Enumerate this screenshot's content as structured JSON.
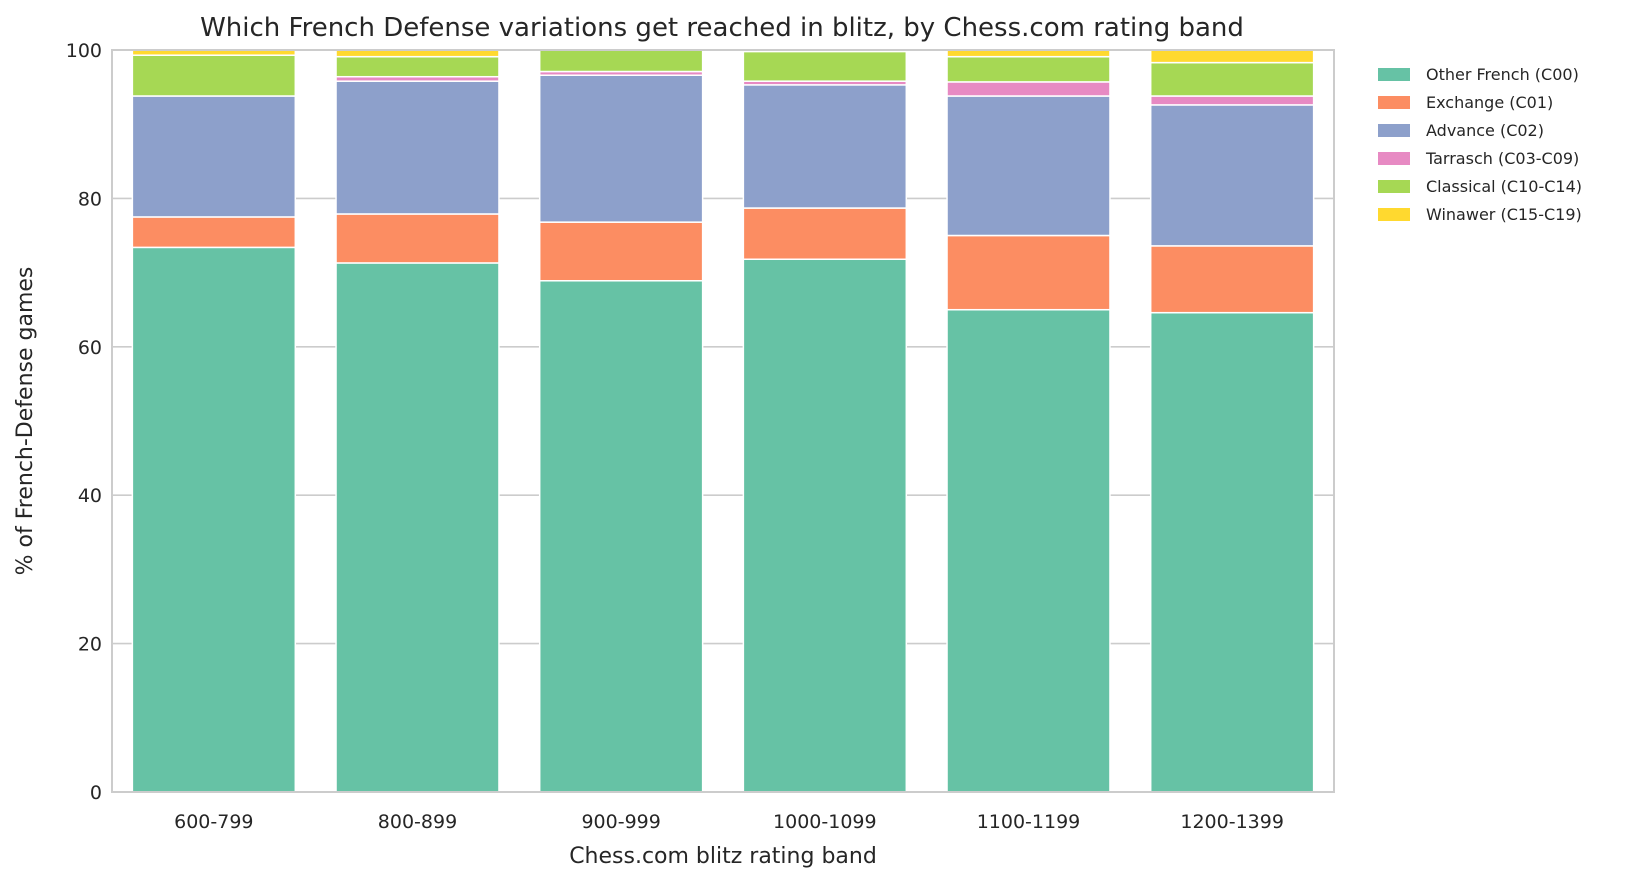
{
  "chart_data": {
    "type": "bar",
    "stacked": true,
    "title": "Which French Defense variations get reached in blitz, by Chess.com rating band",
    "xlabel": "Chess.com blitz rating band",
    "ylabel": "% of French-Defense games",
    "ylim": [
      0,
      100
    ],
    "yticks": [
      "0",
      "20",
      "40",
      "60",
      "80",
      "100"
    ],
    "grid": true,
    "legend_position": "outside-top-right",
    "categories": [
      "600-799",
      "800-899",
      "900-999",
      "1000-1099",
      "1100-1199",
      "1200-1399"
    ],
    "series": [
      {
        "name": "Other French (C00)",
        "color": "#66c2a5",
        "values": [
          73.4,
          71.3,
          68.9,
          71.8,
          65.0,
          64.6
        ]
      },
      {
        "name": "Exchange (C01)",
        "color": "#fc8d62",
        "values": [
          4.1,
          6.6,
          7.9,
          6.9,
          10.0,
          9.0
        ]
      },
      {
        "name": "Advance (C02)",
        "color": "#8da0cb",
        "values": [
          16.3,
          17.9,
          19.8,
          16.6,
          18.8,
          19.0
        ]
      },
      {
        "name": "Tarrasch (C03-C09)",
        "color": "#e78ac3",
        "values": [
          0.0,
          0.6,
          0.5,
          0.5,
          1.9,
          1.2
        ]
      },
      {
        "name": "Classical (C10-C14)",
        "color": "#a6d854",
        "values": [
          5.5,
          2.7,
          2.9,
          4.0,
          3.4,
          4.5
        ]
      },
      {
        "name": "Winawer (C15-C19)",
        "color": "#ffd92f",
        "values": [
          0.7,
          0.9,
          0.0,
          0.2,
          0.9,
          1.7
        ]
      }
    ]
  }
}
